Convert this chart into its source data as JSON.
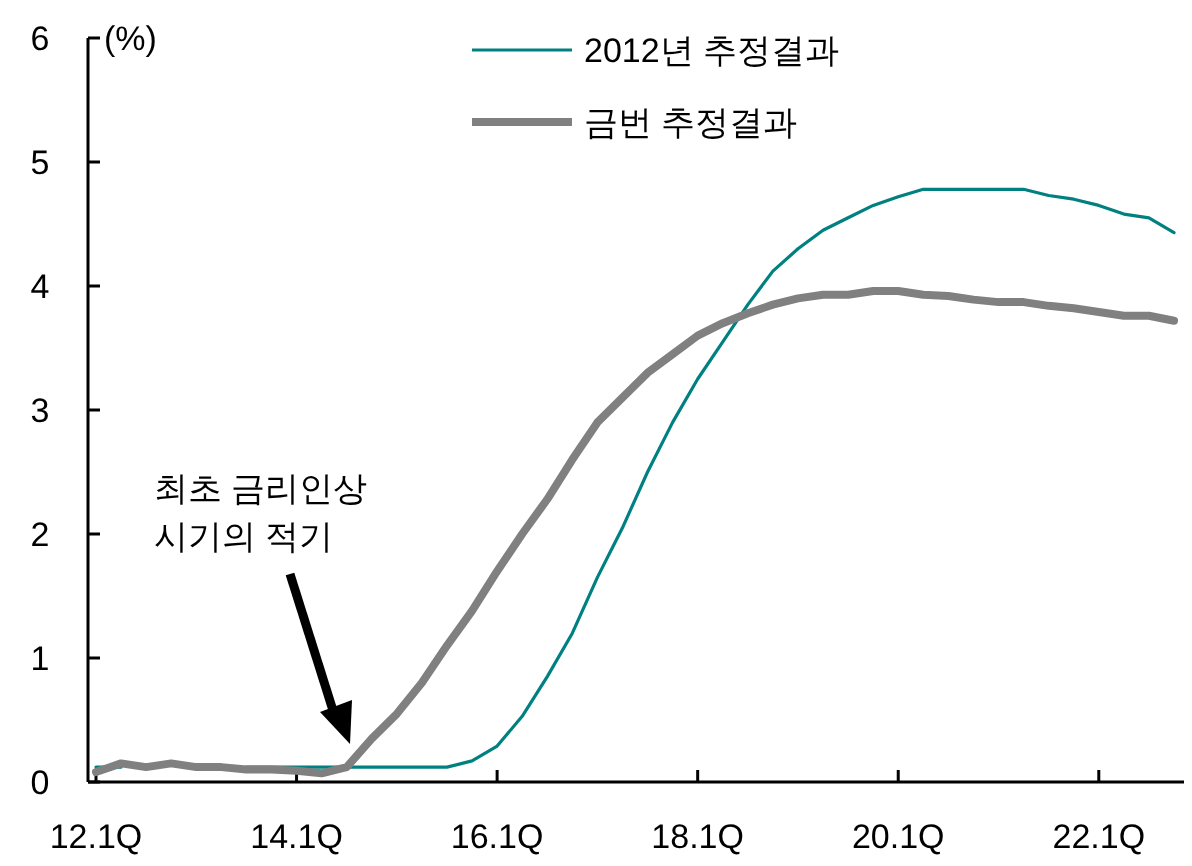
{
  "chart_data": {
    "type": "line",
    "ylabel": "(%)",
    "ylim": [
      0,
      6
    ],
    "yticks": [
      0,
      1,
      2,
      3,
      4,
      5,
      6
    ],
    "legend": "top right",
    "grid": false,
    "marker": "none",
    "line_style": "solid",
    "categories": [
      "12.1Q",
      null,
      null,
      null,
      null,
      null,
      null,
      null,
      "14.1Q",
      null,
      null,
      null,
      null,
      null,
      null,
      null,
      "16.1Q",
      null,
      null,
      null,
      null,
      null,
      null,
      null,
      "18.1Q",
      null,
      null,
      null,
      null,
      null,
      null,
      null,
      "20.1Q",
      null,
      null,
      null,
      null,
      null,
      null,
      null,
      "22.1Q",
      null,
      null,
      null
    ],
    "series": [
      {
        "name": "2012년 추정결과",
        "color": "#008080",
        "values": [
          0.12,
          0.12,
          null,
          null,
          null,
          null,
          0.12,
          0.12,
          0.12,
          0.12,
          0.12,
          0.12,
          0.12,
          0.12,
          0.12,
          0.17,
          0.29,
          0.53,
          0.85,
          1.2,
          1.65,
          2.05,
          2.5,
          2.9,
          3.25,
          3.55,
          3.85,
          4.12,
          4.3,
          4.45,
          4.55,
          4.65,
          4.72,
          4.78,
          4.78,
          4.78,
          4.78,
          4.78,
          4.73,
          4.7,
          4.65,
          4.58,
          4.55,
          4.43
        ]
      },
      {
        "name": "금번 추정결과",
        "color": "#808080",
        "values": [
          0.08,
          0.15,
          0.12,
          0.15,
          0.12,
          0.12,
          0.1,
          0.1,
          0.09,
          0.07,
          0.12,
          0.35,
          0.55,
          0.8,
          1.1,
          1.38,
          1.7,
          2.0,
          2.28,
          2.6,
          2.9,
          3.1,
          3.3,
          3.45,
          3.6,
          3.7,
          3.78,
          3.85,
          3.9,
          3.93,
          3.93,
          3.96,
          3.96,
          3.93,
          3.92,
          3.89,
          3.87,
          3.87,
          3.84,
          3.82,
          3.79,
          3.76,
          3.76,
          3.72
        ]
      }
    ],
    "annotations": [
      "최초 금리인상\n시기의 적기"
    ]
  }
}
